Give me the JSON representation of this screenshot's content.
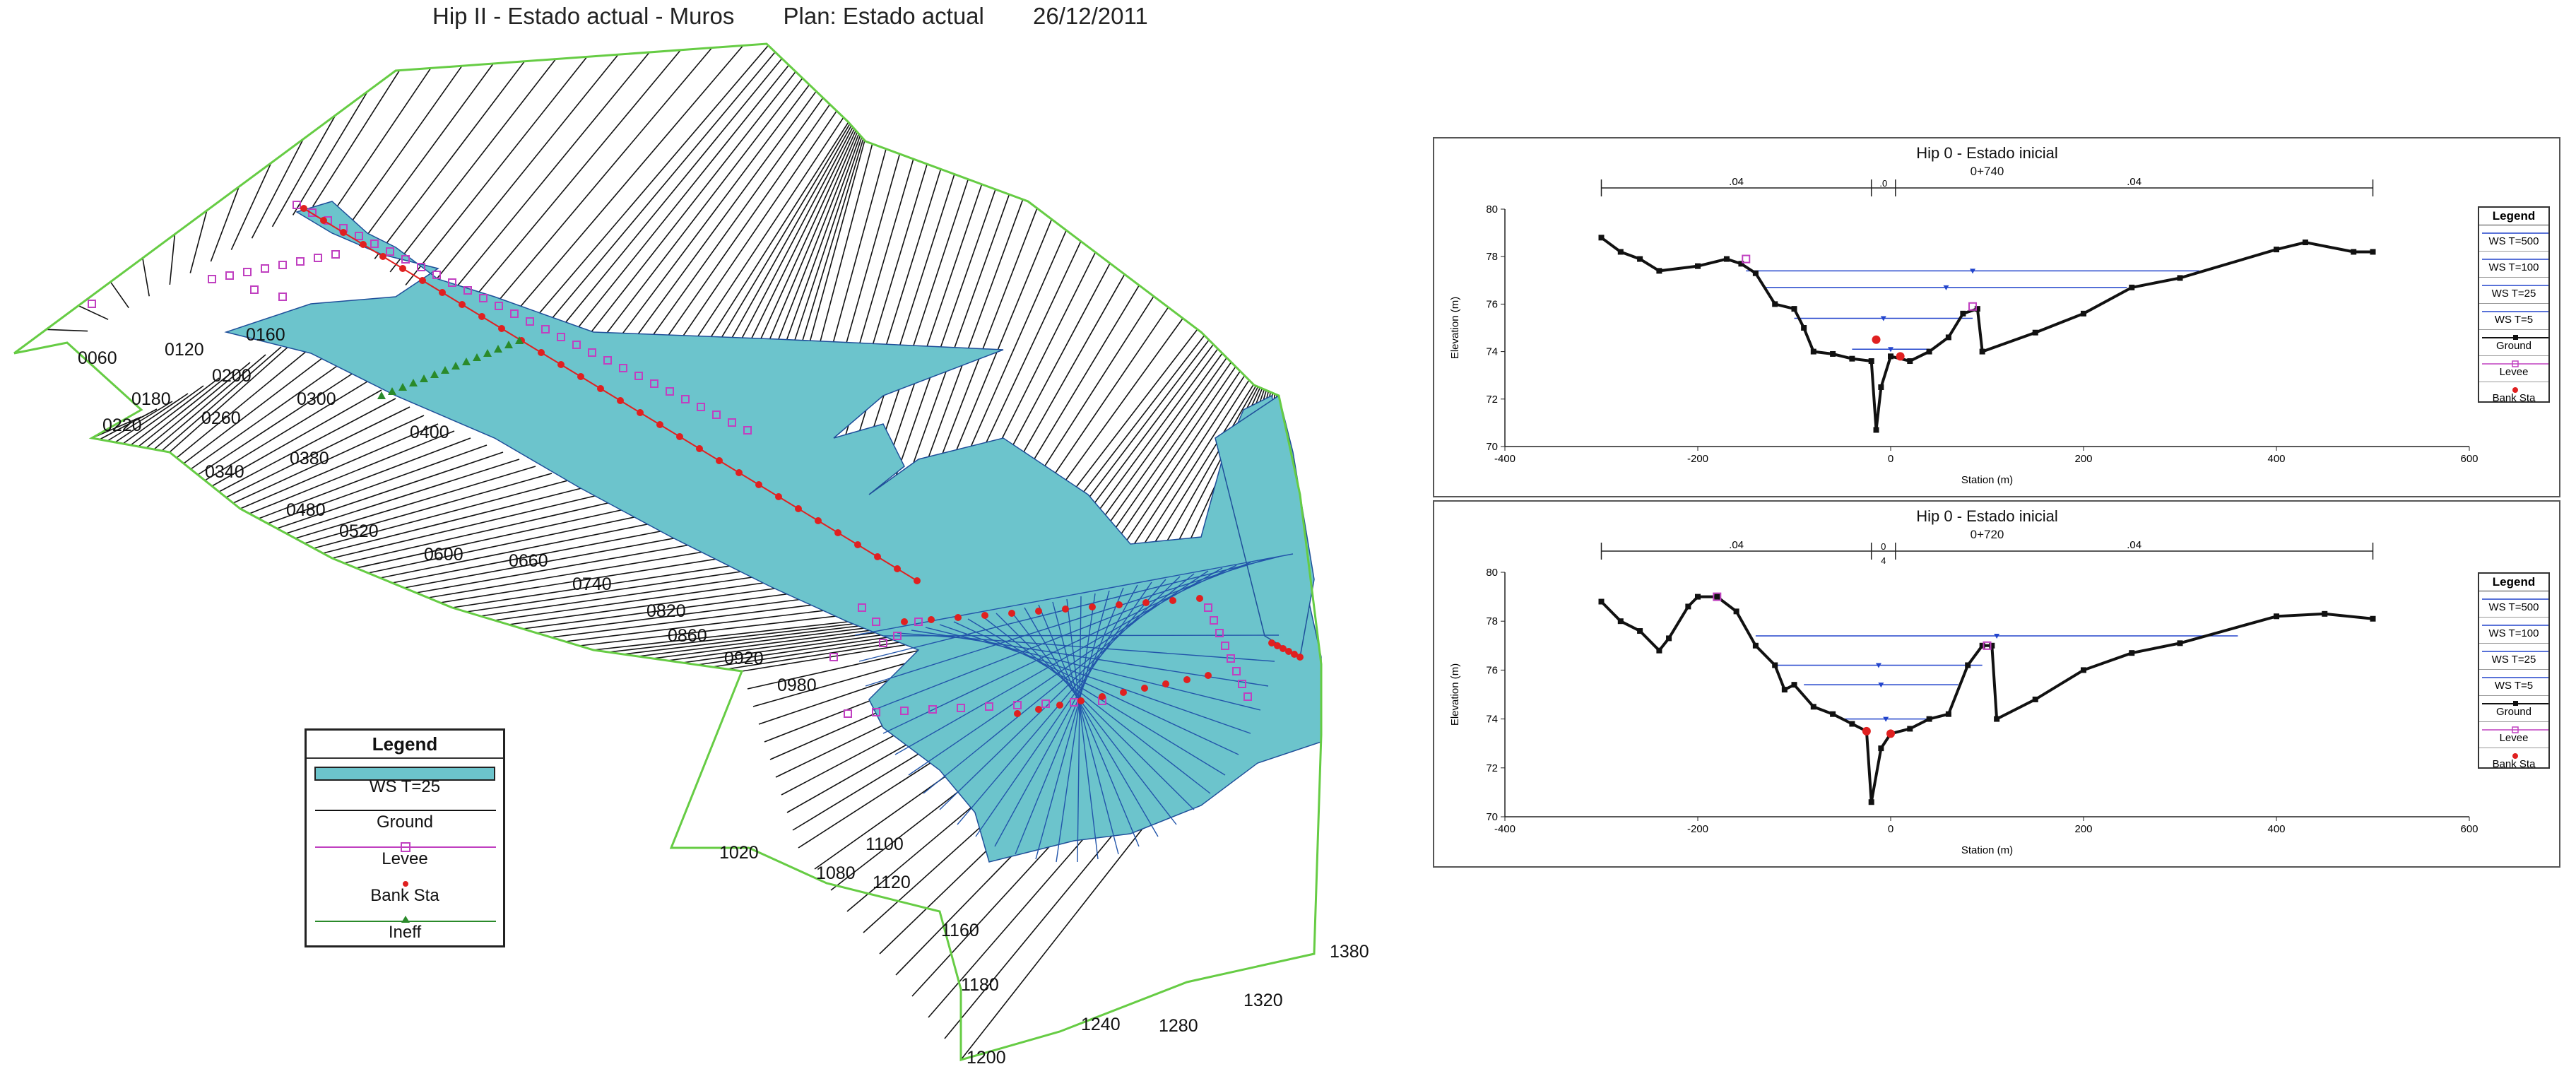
{
  "plot3d": {
    "title_name": "Hip II - Estado actual - Muros",
    "title_plan": "Plan: Estado actual",
    "title_date": "26/12/2011",
    "stations": [
      "0060",
      "0120",
      "0160",
      "0180",
      "0200",
      "0220",
      "0260",
      "0300",
      "0340",
      "0380",
      "0400",
      "0480",
      "0520",
      "0600",
      "0660",
      "0740",
      "0820",
      "0860",
      "0920",
      "0980",
      "1020",
      "1080",
      "1100",
      "1120",
      "1160",
      "1180",
      "1200",
      "1240",
      "1280",
      "1320",
      "1380"
    ],
    "legend": {
      "title": "Legend",
      "items": [
        "WS T=25",
        "Ground",
        "Levee",
        "Bank Sta",
        "Ineff"
      ]
    },
    "colors": {
      "water": "#6cc4cc",
      "ground": "#111111",
      "levee": "#c040c0",
      "bank": "#e02020",
      "ineff": "#2a8a2a",
      "boundary": "#66cc44",
      "section_water": "#2255aa"
    }
  },
  "xs_plots": [
    {
      "title": "Hip 0 - Estado inicial",
      "station": "0+740",
      "n_values": [
        ".04",
        ".0",
        ".04"
      ],
      "xlabel": "Station (m)",
      "ylabel": "Elevation (m)",
      "x_ticks": [
        "-400",
        "-200",
        "0",
        "200",
        "400",
        "600"
      ],
      "y_ticks": [
        "70",
        "72",
        "74",
        "76",
        "78",
        "80"
      ],
      "legend": {
        "title": "Legend",
        "items": [
          "WS T=500",
          "WS T=100",
          "WS T=25",
          "WS T=5",
          "Ground",
          "Levee",
          "Bank Sta"
        ]
      }
    },
    {
      "title": "Hip 0 - Estado inicial",
      "station": "0+720",
      "n_values": [
        ".04",
        "0",
        "4",
        ".04"
      ],
      "xlabel": "Station (m)",
      "ylabel": "Elevation (m)",
      "x_ticks": [
        "-400",
        "-200",
        "0",
        "200",
        "400",
        "600"
      ],
      "y_ticks": [
        "70",
        "72",
        "74",
        "76",
        "78",
        "80"
      ],
      "legend": {
        "title": "Legend",
        "items": [
          "WS T=500",
          "WS T=100",
          "WS T=25",
          "WS T=5",
          "Ground",
          "Levee",
          "Bank Sta"
        ]
      }
    }
  ],
  "chart_data": [
    {
      "type": "line",
      "title": "Hip 0 - Estado inicial",
      "subtitle": "0+740",
      "xlabel": "Station (m)",
      "ylabel": "Elevation (m)",
      "xlim": [
        -400,
        600
      ],
      "ylim": [
        70,
        80
      ],
      "ground": [
        [
          -300,
          78.8
        ],
        [
          -280,
          78.2
        ],
        [
          -260,
          77.9
        ],
        [
          -240,
          77.4
        ],
        [
          -200,
          77.6
        ],
        [
          -170,
          77.9
        ],
        [
          -155,
          77.7
        ],
        [
          -140,
          77.3
        ],
        [
          -120,
          76.0
        ],
        [
          -100,
          75.8
        ],
        [
          -90,
          75.0
        ],
        [
          -80,
          74.0
        ],
        [
          -60,
          73.9
        ],
        [
          -40,
          73.7
        ],
        [
          -20,
          73.6
        ],
        [
          -15,
          70.7
        ],
        [
          -10,
          72.5
        ],
        [
          0,
          73.8
        ],
        [
          20,
          73.6
        ],
        [
          40,
          74.0
        ],
        [
          60,
          74.6
        ],
        [
          75,
          75.6
        ],
        [
          90,
          75.8
        ],
        [
          95,
          74.0
        ],
        [
          150,
          74.8
        ],
        [
          200,
          75.6
        ],
        [
          250,
          76.7
        ],
        [
          300,
          77.1
        ],
        [
          400,
          78.3
        ],
        [
          430,
          78.6
        ],
        [
          480,
          78.2
        ],
        [
          500,
          78.2
        ]
      ],
      "levee": [
        [
          -150,
          77.9
        ],
        [
          85,
          75.9
        ]
      ],
      "bank_sta": [
        [
          -15,
          74.5
        ],
        [
          10,
          73.8
        ]
      ],
      "series": [
        {
          "name": "WS T=500",
          "values": [
            [
              -150,
              77.4
            ],
            [
              320,
              77.4
            ]
          ]
        },
        {
          "name": "WS T=100",
          "values": [
            [
              -130,
              76.7
            ],
            [
              245,
              76.7
            ]
          ]
        },
        {
          "name": "WS T=25",
          "values": [
            [
              -100,
              75.4
            ],
            [
              85,
              75.4
            ]
          ]
        },
        {
          "name": "WS T=5",
          "values": [
            [
              -40,
              74.1
            ],
            [
              40,
              74.1
            ]
          ]
        }
      ]
    },
    {
      "type": "line",
      "title": "Hip 0 - Estado inicial",
      "subtitle": "0+720",
      "xlabel": "Station (m)",
      "ylabel": "Elevation (m)",
      "xlim": [
        -400,
        600
      ],
      "ylim": [
        70,
        80
      ],
      "ground": [
        [
          -300,
          78.8
        ],
        [
          -280,
          78.0
        ],
        [
          -260,
          77.6
        ],
        [
          -240,
          76.8
        ],
        [
          -230,
          77.3
        ],
        [
          -210,
          78.6
        ],
        [
          -200,
          79.0
        ],
        [
          -180,
          79.0
        ],
        [
          -160,
          78.4
        ],
        [
          -140,
          77.0
        ],
        [
          -120,
          76.2
        ],
        [
          -110,
          75.2
        ],
        [
          -100,
          75.4
        ],
        [
          -80,
          74.5
        ],
        [
          -60,
          74.2
        ],
        [
          -40,
          73.8
        ],
        [
          -25,
          73.5
        ],
        [
          -20,
          70.6
        ],
        [
          -10,
          72.8
        ],
        [
          0,
          73.4
        ],
        [
          20,
          73.6
        ],
        [
          40,
          74.0
        ],
        [
          60,
          74.2
        ],
        [
          80,
          76.2
        ],
        [
          95,
          77.0
        ],
        [
          105,
          77.0
        ],
        [
          110,
          74.0
        ],
        [
          150,
          74.8
        ],
        [
          200,
          76.0
        ],
        [
          250,
          76.7
        ],
        [
          300,
          77.1
        ],
        [
          400,
          78.2
        ],
        [
          450,
          78.3
        ],
        [
          500,
          78.1
        ]
      ],
      "levee": [
        [
          -180,
          79.0
        ],
        [
          100,
          77.0
        ]
      ],
      "bank_sta": [
        [
          -25,
          73.5
        ],
        [
          0,
          73.4
        ]
      ],
      "series": [
        {
          "name": "WS T=500",
          "values": [
            [
              -140,
              77.4
            ],
            [
              360,
              77.4
            ]
          ]
        },
        {
          "name": "WS T=100",
          "values": [
            [
              -120,
              76.2
            ],
            [
              95,
              76.2
            ]
          ]
        },
        {
          "name": "WS T=25",
          "values": [
            [
              -90,
              75.4
            ],
            [
              70,
              75.4
            ]
          ]
        },
        {
          "name": "WS T=5",
          "values": [
            [
              -50,
              74.0
            ],
            [
              40,
              74.0
            ]
          ]
        }
      ]
    }
  ]
}
